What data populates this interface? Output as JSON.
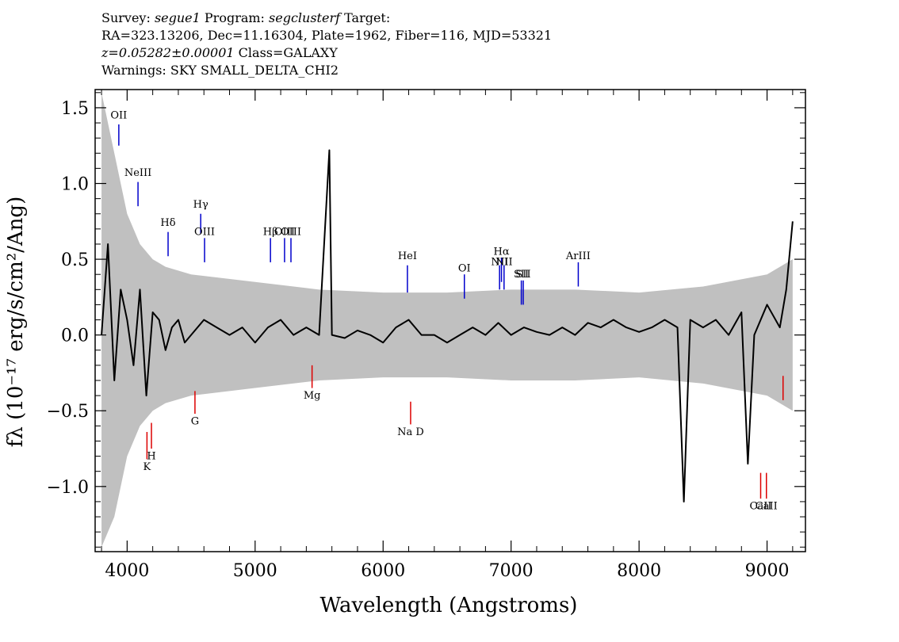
{
  "header": {
    "line1": {
      "survey_label": "Survey: ",
      "survey": "segue1",
      "program_label": " Program: ",
      "program": "segclusterf",
      "target_label": " Target:"
    },
    "line2": "RA=323.13206, Dec=11.16304, Plate=1962, Fiber=116, MJD=53321",
    "line3": {
      "z": "z=0.05282±0.00001",
      "class": " Class=GALAXY"
    },
    "line4": "Warnings: SKY SMALL_DELTA_CHI2"
  },
  "colors": {
    "flux": "#000000",
    "error": "#c0c0c0",
    "emission": "#0000cc",
    "absorption": "#dd0000"
  },
  "chart_data": {
    "type": "line",
    "xlabel": "Wavelength (Angstroms)",
    "ylabel": "fλ (10⁻¹⁷ erg/s/cm²/Ang)",
    "xlim": [
      3750,
      9300
    ],
    "ylim": [
      -1.43,
      1.62
    ],
    "x_ticks": [
      4000,
      5000,
      6000,
      7000,
      8000,
      9000
    ],
    "x_tick_labels": [
      "4000",
      "5000",
      "6000",
      "7000",
      "8000",
      "9000"
    ],
    "y_ticks": [
      -1.0,
      -0.5,
      0.0,
      0.5,
      1.0,
      1.5
    ],
    "y_tick_labels": [
      "−1.0",
      "−0.5",
      "0.0",
      "0.5",
      "1.0",
      "1.5"
    ],
    "grid": false,
    "series": [
      {
        "x": [
          3800,
          3850,
          3900,
          3950,
          4000,
          4050,
          4100,
          4150,
          4200,
          4250,
          4300,
          4350,
          4400,
          4450,
          4500,
          4600,
          4700,
          4800,
          4900,
          5000,
          5100,
          5200,
          5300,
          5400,
          5500,
          5580,
          5600,
          5700,
          5800,
          5900,
          6000,
          6100,
          6200,
          6300,
          6400,
          6500,
          6600,
          6700,
          6800,
          6900,
          7000,
          7100,
          7200,
          7300,
          7400,
          7500,
          7600,
          7700,
          7800,
          7900,
          8000,
          8100,
          8200,
          8300,
          8350,
          8400,
          8500,
          8600,
          8700,
          8800,
          8850,
          8900,
          9000,
          9100,
          9150,
          9200
        ],
        "y": [
          0.0,
          0.6,
          -0.3,
          0.3,
          0.1,
          -0.2,
          0.3,
          -0.4,
          0.15,
          0.1,
          -0.1,
          0.05,
          0.1,
          -0.05,
          0.0,
          0.1,
          0.05,
          0.0,
          0.05,
          -0.05,
          0.05,
          0.1,
          0.0,
          0.05,
          0.0,
          1.22,
          0.0,
          -0.02,
          0.03,
          0.0,
          -0.05,
          0.05,
          0.1,
          0.0,
          0.0,
          -0.05,
          0.0,
          0.05,
          0.0,
          0.08,
          0.0,
          0.05,
          0.02,
          0.0,
          0.05,
          0.0,
          0.08,
          0.05,
          0.1,
          0.05,
          0.02,
          0.05,
          0.1,
          0.05,
          -1.1,
          0.1,
          0.05,
          0.1,
          0.0,
          0.15,
          -0.85,
          0.0,
          0.2,
          0.05,
          0.3,
          0.75
        ]
      }
    ],
    "error_band": {
      "x": [
        3800,
        3900,
        4000,
        4100,
        4200,
        4300,
        4500,
        5000,
        5500,
        6000,
        6500,
        7000,
        7500,
        8000,
        8500,
        9000,
        9200
      ],
      "upper": [
        1.6,
        1.2,
        0.8,
        0.6,
        0.5,
        0.45,
        0.4,
        0.35,
        0.3,
        0.28,
        0.28,
        0.3,
        0.3,
        0.28,
        0.32,
        0.4,
        0.5
      ],
      "lower": [
        -1.4,
        -1.2,
        -0.8,
        -0.6,
        -0.5,
        -0.45,
        -0.4,
        -0.35,
        -0.3,
        -0.28,
        -0.28,
        -0.3,
        -0.3,
        -0.28,
        -0.32,
        -0.4,
        -0.5
      ]
    },
    "emission_lines": [
      {
        "label": "OII",
        "x": 3935,
        "y0": 1.25,
        "y1": 1.39,
        "ly": 1.43
      },
      {
        "label": "NeIII",
        "x": 4085,
        "y0": 0.85,
        "y1": 1.01,
        "ly": 1.05
      },
      {
        "label": "Hδ",
        "x": 4320,
        "y0": 0.52,
        "y1": 0.68,
        "ly": 0.72
      },
      {
        "label": "Hγ",
        "x": 4575,
        "y0": 0.67,
        "y1": 0.8,
        "ly": 0.84
      },
      {
        "label": "OIII",
        "x": 4605,
        "y0": 0.48,
        "y1": 0.64,
        "ly": 0.66
      },
      {
        "label": "Hβ",
        "x": 5120,
        "y0": 0.48,
        "y1": 0.64,
        "ly": 0.66
      },
      {
        "label": "OIII",
        "x": 5230,
        "y0": 0.48,
        "y1": 0.64,
        "ly": 0.66
      },
      {
        "label": "OIII",
        "x": 5280,
        "y0": 0.48,
        "y1": 0.64,
        "ly": 0.66
      },
      {
        "label": "HeI",
        "x": 6190,
        "y0": 0.28,
        "y1": 0.46,
        "ly": 0.5
      },
      {
        "label": "OI",
        "x": 6635,
        "y0": 0.24,
        "y1": 0.4,
        "ly": 0.42
      },
      {
        "label": "NII",
        "x": 6910,
        "y0": 0.3,
        "y1": 0.46,
        "ly": 0.46
      },
      {
        "label": "Hα",
        "x": 6925,
        "y0": 0.35,
        "y1": 0.51,
        "ly": 0.53
      },
      {
        "label": "NII",
        "x": 6945,
        "y0": 0.3,
        "y1": 0.46,
        "ly": 0.46
      },
      {
        "label": "SII",
        "x": 7080,
        "y0": 0.2,
        "y1": 0.36,
        "ly": 0.38
      },
      {
        "label": "SII",
        "x": 7095,
        "y0": 0.2,
        "y1": 0.36,
        "ly": 0.38
      },
      {
        "label": "ArIII",
        "x": 7525,
        "y0": 0.32,
        "y1": 0.48,
        "ly": 0.5
      }
    ],
    "absorption_lines": [
      {
        "label": "K",
        "x": 4155,
        "y0": -0.82,
        "y1": -0.64,
        "ly": -0.89
      },
      {
        "label": "H",
        "x": 4190,
        "y0": -0.75,
        "y1": -0.58,
        "ly": -0.82
      },
      {
        "label": "G",
        "x": 4530,
        "y0": -0.52,
        "y1": -0.37,
        "ly": -0.59
      },
      {
        "label": "Mg",
        "x": 5445,
        "y0": -0.35,
        "y1": -0.2,
        "ly": -0.42
      },
      {
        "label": "Na D",
        "x": 6215,
        "y0": -0.59,
        "y1": -0.44,
        "ly": -0.66
      },
      {
        "label": "CaII",
        "x": 8950,
        "y0": -1.08,
        "y1": -0.91,
        "ly": -1.15
      },
      {
        "label": "CaII",
        "x": 8995,
        "y0": -1.08,
        "y1": -0.91,
        "ly": -1.15
      },
      {
        "label": "",
        "x": 9125,
        "y0": -0.43,
        "y1": -0.27,
        "ly": -0.45
      }
    ]
  }
}
